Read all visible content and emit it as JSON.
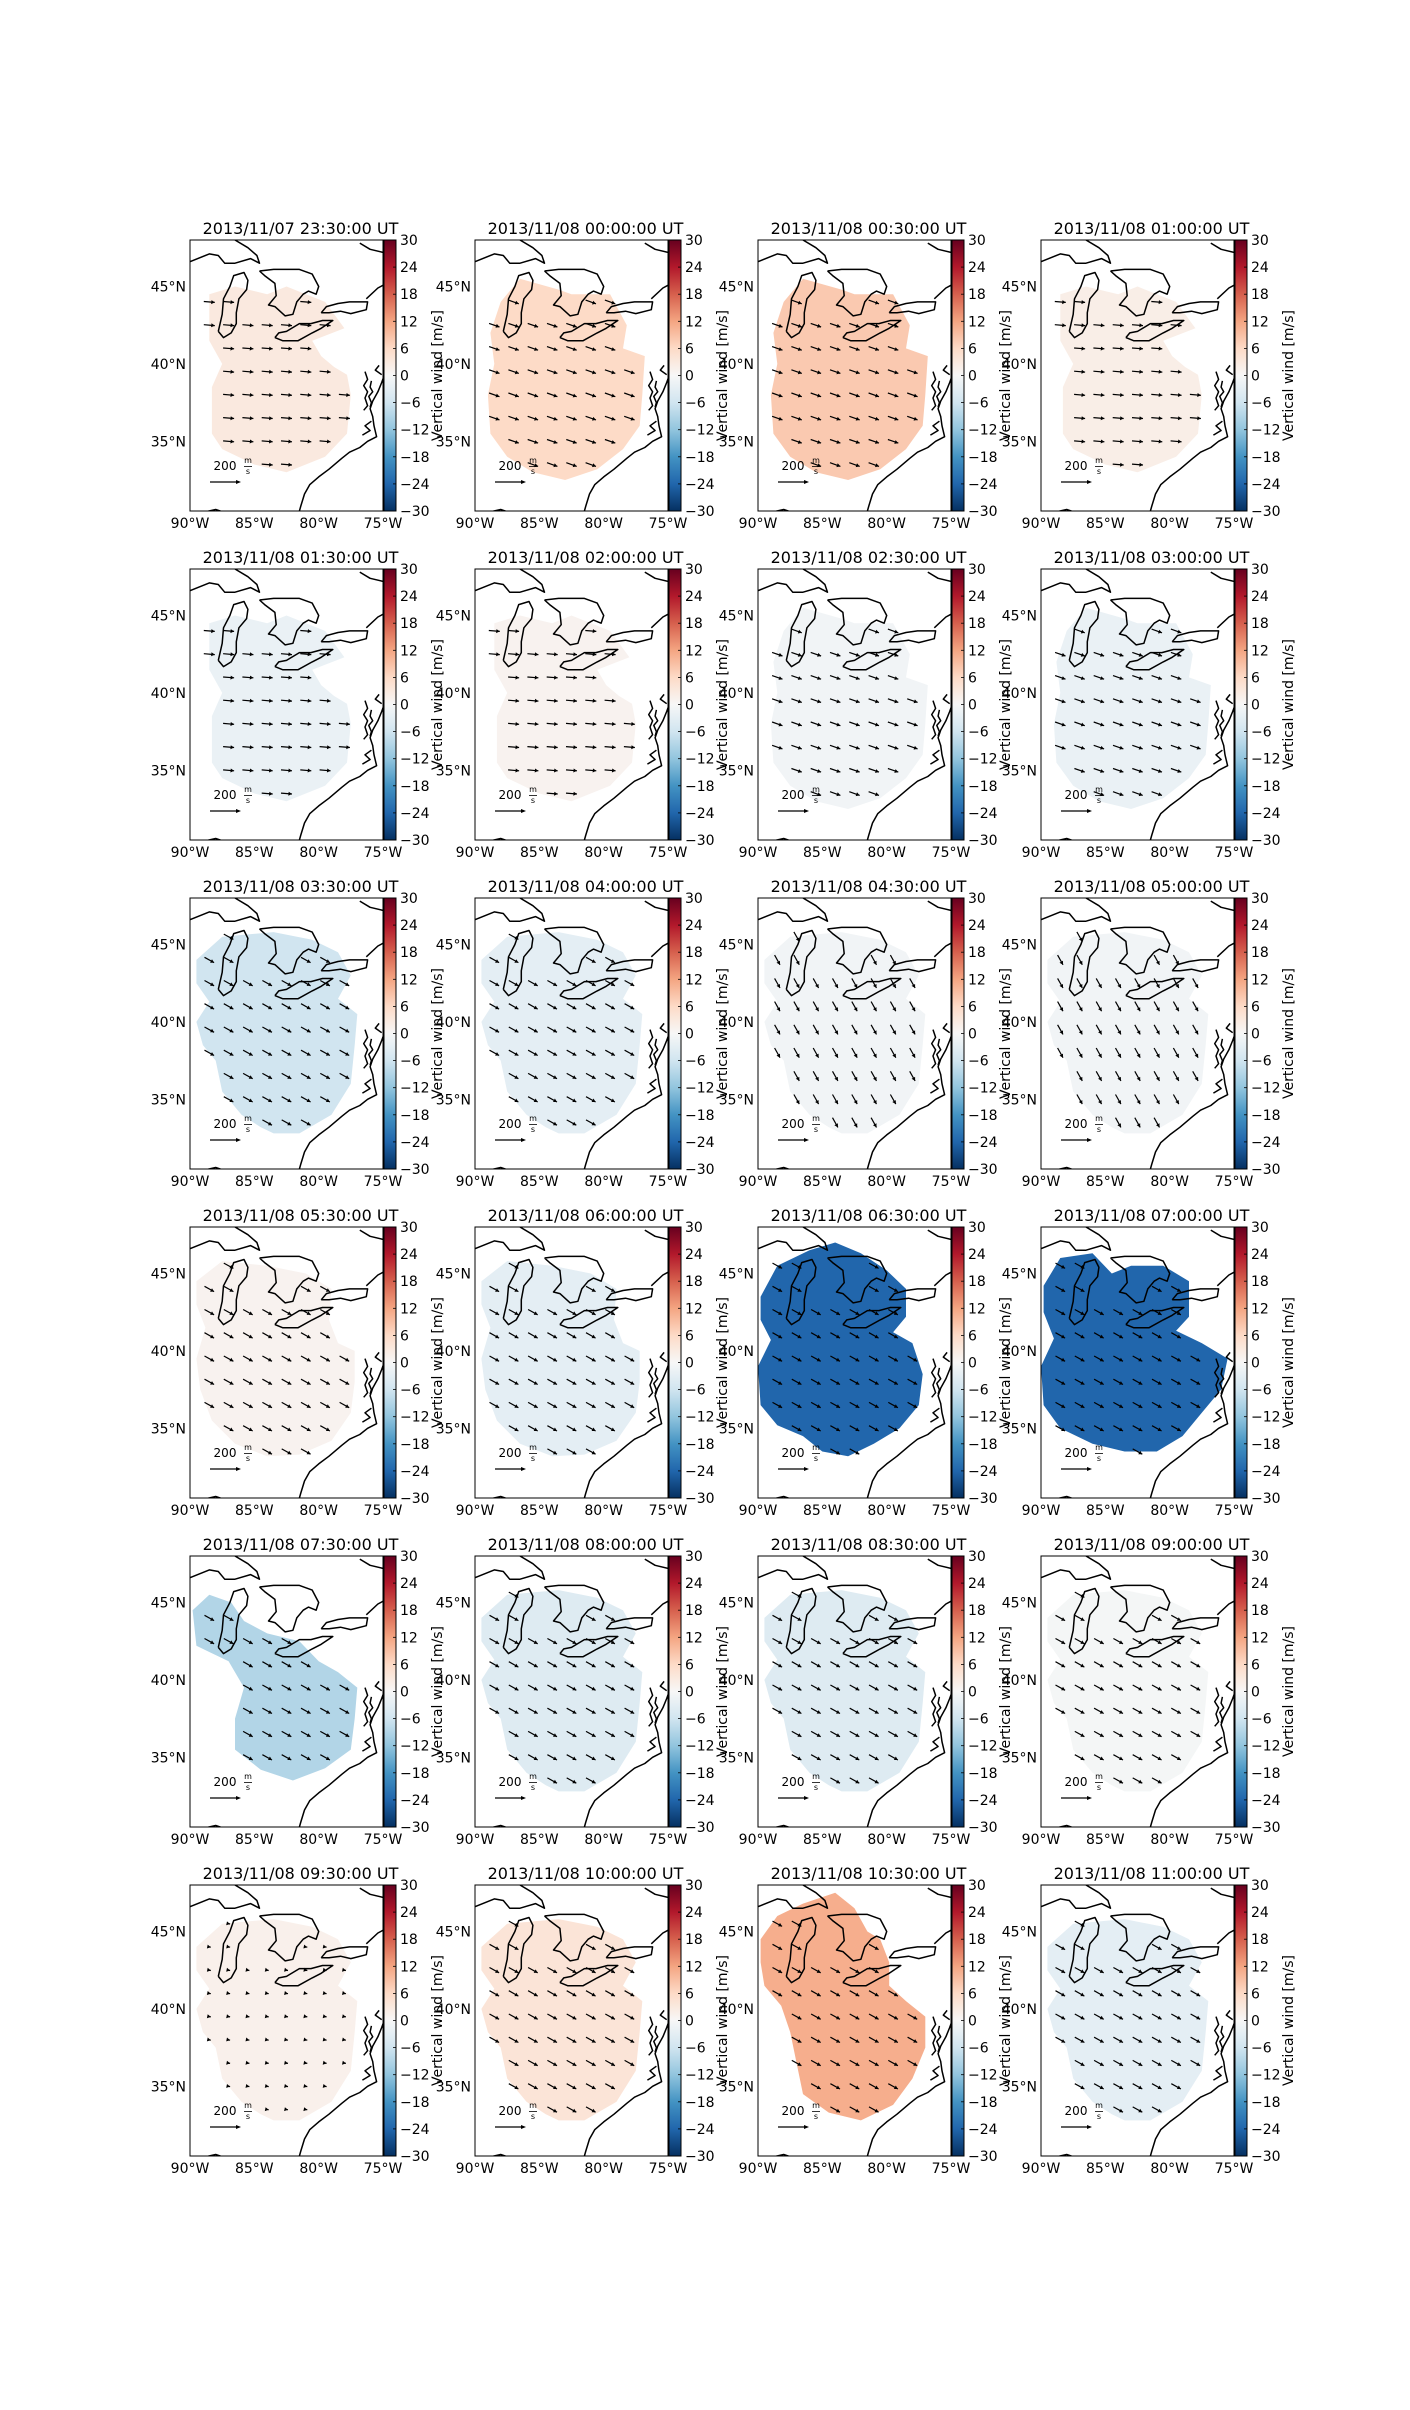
{
  "colorbar": {
    "label": "Vertical wind [m/s]",
    "ticks": [
      "30",
      "24",
      "18",
      "12",
      "6",
      "0",
      "−6",
      "−12",
      "−18",
      "−24",
      "−30"
    ],
    "min": -30,
    "max": 30,
    "colormap": "RdBu_r",
    "stops": [
      "#053061",
      "#2166ac",
      "#4393c3",
      "#92c5de",
      "#d1e5f0",
      "#f7f7f7",
      "#fddbc7",
      "#f4a582",
      "#d6604d",
      "#b2182b",
      "#67001f"
    ]
  },
  "axes": {
    "lat_labels": [
      "45°N",
      "40°N",
      "35°N"
    ],
    "lon_labels": [
      "90°W",
      "85°W",
      "80°W",
      "75°W"
    ],
    "lon_range": [
      -90,
      -75
    ],
    "lat_range": [
      30.5,
      48
    ]
  },
  "quiver_key": {
    "value": "200",
    "unit_numerator": "m",
    "unit_denominator": "s"
  },
  "panels": [
    {
      "title": "2013/11/07 23:30:00 UT",
      "vw": 3,
      "region": "a",
      "arrows": "e"
    },
    {
      "title": "2013/11/08 00:00:00 UT",
      "vw": 6,
      "region": "b",
      "arrows": "ese"
    },
    {
      "title": "2013/11/08 00:30:00 UT",
      "vw": 8,
      "region": "b",
      "arrows": "ese"
    },
    {
      "title": "2013/11/08 01:00:00 UT",
      "vw": 2,
      "region": "a",
      "arrows": "e"
    },
    {
      "title": "2013/11/08 01:30:00 UT",
      "vw": -2,
      "region": "a",
      "arrows": "e"
    },
    {
      "title": "2013/11/08 02:00:00 UT",
      "vw": 1,
      "region": "a",
      "arrows": "e"
    },
    {
      "title": "2013/11/08 02:30:00 UT",
      "vw": -1,
      "region": "b",
      "arrows": "ese"
    },
    {
      "title": "2013/11/08 03:00:00 UT",
      "vw": -2,
      "region": "b",
      "arrows": "ese"
    },
    {
      "title": "2013/11/08 03:30:00 UT",
      "vw": -6,
      "region": "c",
      "arrows": "se"
    },
    {
      "title": "2013/11/08 04:00:00 UT",
      "vw": -3,
      "region": "c",
      "arrows": "se"
    },
    {
      "title": "2013/11/08 04:30:00 UT",
      "vw": -1,
      "region": "c",
      "arrows": "sse"
    },
    {
      "title": "2013/11/08 05:00:00 UT",
      "vw": -1,
      "region": "c",
      "arrows": "sse"
    },
    {
      "title": "2013/11/08 05:30:00 UT",
      "vw": 1,
      "region": "d",
      "arrows": "se"
    },
    {
      "title": "2013/11/08 06:00:00 UT",
      "vw": -3,
      "region": "d",
      "arrows": "se"
    },
    {
      "title": "2013/11/08 06:30:00 UT",
      "vw": -24,
      "region": "e",
      "arrows": "se"
    },
    {
      "title": "2013/11/08 07:00:00 UT",
      "vw": -24,
      "region": "f",
      "arrows": "se"
    },
    {
      "title": "2013/11/08 07:30:00 UT",
      "vw": -9,
      "region": "g",
      "arrows": "se"
    },
    {
      "title": "2013/11/08 08:00:00 UT",
      "vw": -4,
      "region": "c",
      "arrows": "se"
    },
    {
      "title": "2013/11/08 08:30:00 UT",
      "vw": -4,
      "region": "c",
      "arrows": "se"
    },
    {
      "title": "2013/11/08 09:00:00 UT",
      "vw": -0.5,
      "region": "c",
      "arrows": "se"
    },
    {
      "title": "2013/11/08 09:30:00 UT",
      "vw": 1.5,
      "region": "c",
      "arrows": "dot"
    },
    {
      "title": "2013/11/08 10:00:00 UT",
      "vw": 4,
      "region": "c",
      "arrows": "se"
    },
    {
      "title": "2013/11/08 10:30:00 UT",
      "vw": 11,
      "region": "h",
      "arrows": "se"
    },
    {
      "title": "2013/11/08 11:00:00 UT",
      "vw": -3,
      "region": "c",
      "arrows": "se"
    }
  ]
}
